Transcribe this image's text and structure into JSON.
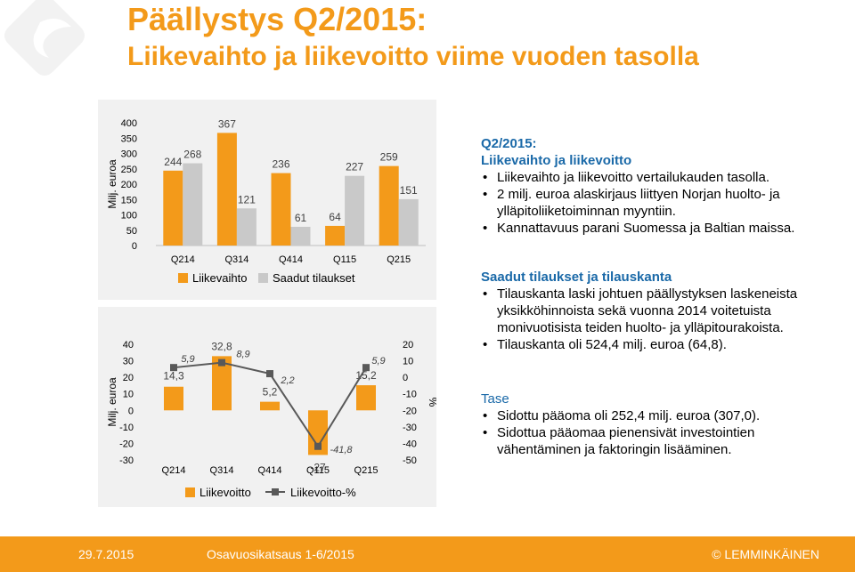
{
  "title": {
    "line1": "Päällystys Q2/2015:",
    "line2": "Liikevaihto ja liikevoitto viime vuoden tasolla"
  },
  "colors": {
    "accent": "#f39a1a",
    "gray": "#c9c9c9",
    "line": "#595959",
    "heading": "#1a69a8"
  },
  "chart_data": [
    {
      "type": "bar",
      "categories": [
        "Q214",
        "Q314",
        "Q414",
        "Q115",
        "Q215"
      ],
      "series": [
        {
          "name": "Liikevaihto",
          "values": [
            244,
            367,
            236,
            64,
            259
          ],
          "color": "#f39a1a"
        },
        {
          "name": "Saadut tilaukset",
          "values": [
            268,
            121,
            61,
            227,
            151
          ],
          "color": "#c9c9c9"
        }
      ],
      "ylabel": "Milj. euroa",
      "ylim": [
        0,
        400
      ],
      "yticks": [
        0,
        50,
        100,
        150,
        200,
        250,
        300,
        350,
        400
      ],
      "legend": "bottom"
    },
    {
      "type": "bar",
      "categories": [
        "Q214",
        "Q314",
        "Q414",
        "Q115",
        "Q215"
      ],
      "series": [
        {
          "name": "Liikevoitto",
          "type": "bar",
          "values": [
            14.3,
            32.8,
            5.2,
            -27,
            15.2
          ],
          "labels": [
            "14,3",
            "32,8",
            "5,2",
            "-27",
            "15,2"
          ],
          "color": "#f39a1a"
        },
        {
          "name": "Liikevoitto-%",
          "type": "line",
          "axis": "right",
          "values": [
            5.9,
            8.9,
            2.2,
            -41.8,
            5.9
          ],
          "labels": [
            "5,9",
            "8,9",
            "2,2",
            "-41,8",
            "5,9"
          ],
          "color": "#595959"
        }
      ],
      "ylabel": "Milj. euroa",
      "y2label": "%",
      "ylim": [
        -30,
        40
      ],
      "y2lim": [
        -50,
        20
      ],
      "yticks": [
        -30,
        -20,
        -10,
        0,
        10,
        20,
        30,
        40
      ],
      "y2ticks": [
        -50,
        -40,
        -30,
        -20,
        -10,
        0,
        10,
        20
      ],
      "legend": "bottom"
    }
  ],
  "section1": {
    "heading1": "Q2/2015:",
    "heading2": "Liikevaihto ja liikevoitto",
    "bullets": [
      "Liikevaihto ja liikevoitto vertailukauden tasolla.",
      "2 milj. euroa alaskirjaus liittyen Norjan huolto- ja ylläpitoliiketoiminnan myyntiin.",
      "Kannattavuus parani Suomessa ja Baltian maissa."
    ]
  },
  "section2": {
    "heading": "Saadut tilaukset ja tilauskanta",
    "bullets": [
      "Tilauskanta laski johtuen päällystyksen laskeneista yksikköhinnoista sekä vuonna 2014 voitetuista monivuotisista teiden huolto- ja ylläpitourakoista.",
      "Tilauskanta oli 524,4 milj. euroa (64,8)."
    ]
  },
  "section3": {
    "heading": "Tase",
    "bullets": [
      "Sidottu pääoma oli 252,4 milj. euroa (307,0).",
      "Sidottua pääomaa pienensivät investointien vähentäminen ja faktoringin lisääminen."
    ]
  },
  "footer": {
    "date": "29.7.2015",
    "report": "Osavuosikatsaus 1-6/2015",
    "brand": "© LEMMINKÄINEN"
  }
}
